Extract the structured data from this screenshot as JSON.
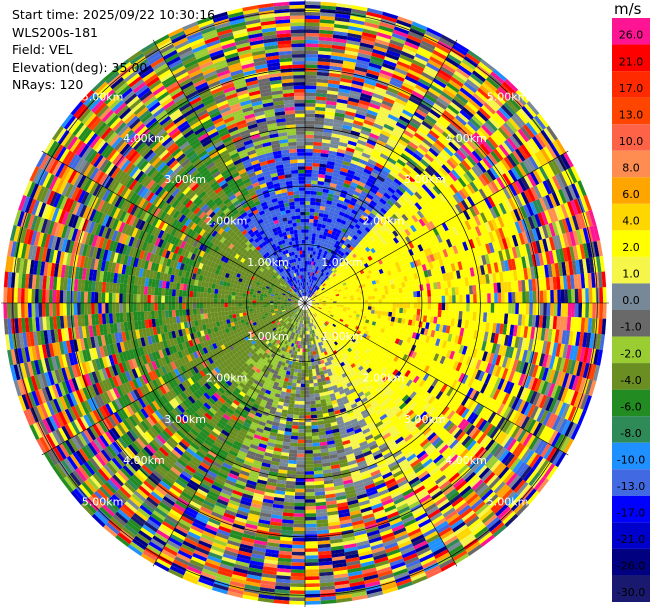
{
  "header": {
    "start_time": "Start time: 2025/09/22 10:30:16",
    "instrument": "WLS200s-181",
    "field": "Field: VEL",
    "elevation": "Elevation(deg): 35.00",
    "nrays": "NRays: 120"
  },
  "colorbar": {
    "unit": "m/s",
    "levels": [
      {
        "label": "26.0",
        "color": "#ff1493"
      },
      {
        "label": "21.0",
        "color": "#ff0000"
      },
      {
        "label": "17.0",
        "color": "#ff2a00"
      },
      {
        "label": "13.0",
        "color": "#ff4500"
      },
      {
        "label": "10.0",
        "color": "#ff6347"
      },
      {
        "label": "8.0",
        "color": "#ff8c50"
      },
      {
        "label": "6.0",
        "color": "#ffa500"
      },
      {
        "label": "4.0",
        "color": "#ffd700"
      },
      {
        "label": "2.0",
        "color": "#ffff00"
      },
      {
        "label": "1.0",
        "color": "#f5f54a"
      },
      {
        "label": "0.0",
        "color": "#778899"
      },
      {
        "label": "-1.0",
        "color": "#696969"
      },
      {
        "label": "-2.0",
        "color": "#9acd32"
      },
      {
        "label": "-4.0",
        "color": "#6b8e23"
      },
      {
        "label": "-6.0",
        "color": "#228b22"
      },
      {
        "label": "-8.0",
        "color": "#2e8b57"
      },
      {
        "label": "-10.0",
        "color": "#1e90ff"
      },
      {
        "label": "-13.0",
        "color": "#4169e1"
      },
      {
        "label": "-17.0",
        "color": "#0000ff"
      },
      {
        "label": "-21.0",
        "color": "#0000cd"
      },
      {
        "label": "-26.0",
        "color": "#000080"
      },
      {
        "label": "-30.0",
        "color": "#191970"
      }
    ]
  },
  "chart_data": {
    "type": "heatmap",
    "projection": "polar PPI",
    "field": "VEL",
    "units": "m/s",
    "n_rays": 120,
    "elevation_deg": 35.0,
    "range_rings_km": [
      1.0,
      2.0,
      3.0,
      4.0,
      5.0
    ],
    "range_ring_labels": [
      "1.00km",
      "2.00km",
      "3.00km",
      "4.00km",
      "5.00km"
    ],
    "max_range_km": 5.2,
    "pattern": {
      "east_sector": "positive velocities 1–4 m/s (yellow)",
      "west_sector": "negative velocities -2 to -6 m/s (green)",
      "north_sector": "mixed, blue -13 to -17 m/s near center",
      "outer_gates": "noisy mixed values"
    }
  }
}
